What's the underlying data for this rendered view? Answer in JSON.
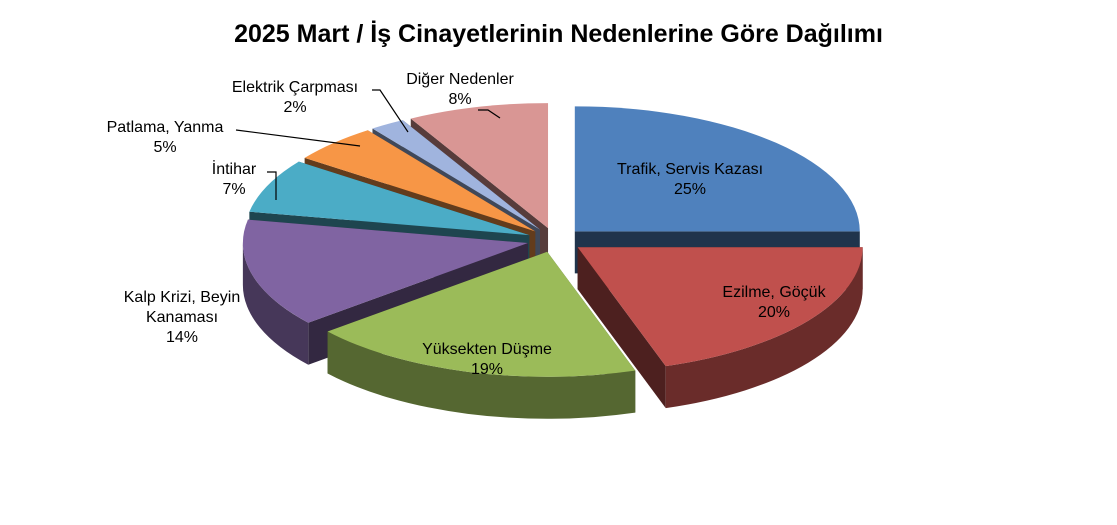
{
  "chart_data": {
    "type": "pie",
    "title": "2025 Mart / İş Cinayetlerinin Nedenlerine Göre Dağılımı",
    "categories": [
      "Trafik, Servis Kazası",
      "Ezilme, Göçük",
      "Yüksekten Düşme",
      "Kalp Krizi, Beyin Kanaması",
      "İntihar",
      "Patlama, Yanma",
      "Elektrik Çarpması",
      "Diğer Nedenler"
    ],
    "values": [
      25,
      20,
      19,
      14,
      7,
      5,
      2,
      8
    ],
    "value_labels": [
      "25%",
      "20%",
      "19%",
      "14%",
      "7%",
      "5%",
      "2%",
      "8%"
    ],
    "colors": [
      "#4f81bd",
      "#c0504d",
      "#9bbb59",
      "#8064a2",
      "#4bacc6",
      "#f79646",
      "#a0b4de",
      "#d99694"
    ]
  }
}
